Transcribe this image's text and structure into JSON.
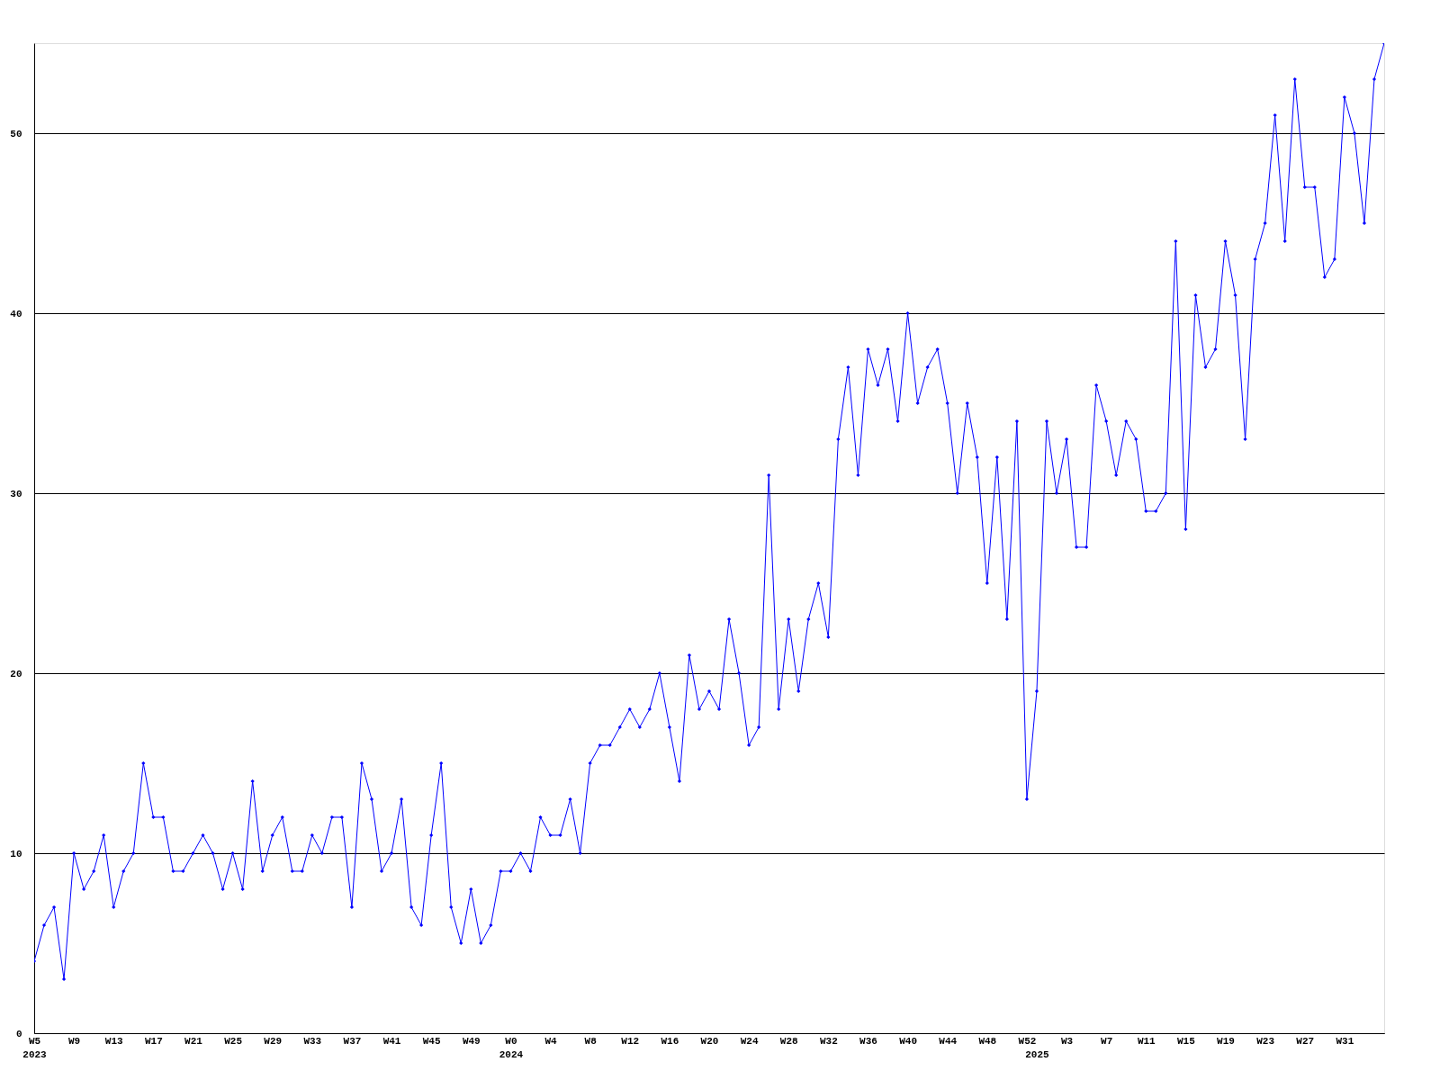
{
  "chart_data": {
    "type": "line",
    "categories": [
      "W5\n2023",
      null,
      null,
      null,
      "W9",
      null,
      null,
      null,
      "W13",
      null,
      null,
      null,
      "W17",
      null,
      null,
      null,
      "W21",
      null,
      null,
      null,
      "W25",
      null,
      null,
      null,
      "W29",
      null,
      null,
      null,
      "W33",
      null,
      null,
      null,
      "W37",
      null,
      null,
      null,
      "W41",
      null,
      null,
      null,
      "W45",
      null,
      null,
      null,
      "W49",
      null,
      null,
      null,
      "W0\n2024",
      null,
      null,
      null,
      "W4",
      null,
      null,
      null,
      "W8",
      null,
      null,
      null,
      "W12",
      null,
      null,
      null,
      "W16",
      null,
      null,
      null,
      "W20",
      null,
      null,
      null,
      "W24",
      null,
      null,
      null,
      "W28",
      null,
      null,
      null,
      "W32",
      null,
      null,
      null,
      "W36",
      null,
      null,
      null,
      "W40",
      null,
      null,
      null,
      "W44",
      null,
      null,
      null,
      "W48",
      null,
      null,
      null,
      "W52",
      "\n2025",
      null,
      null,
      "W3",
      null,
      null,
      null,
      "W7",
      null,
      null,
      null,
      "W11",
      null,
      null,
      null,
      "W15",
      null,
      null,
      null,
      "W19",
      null,
      null,
      null,
      "W23",
      null,
      null,
      null,
      "W27",
      null,
      null,
      null,
      "W31",
      null,
      null,
      null,
      null
    ],
    "series": [
      {
        "color": "#0000ff",
        "values": [
          4,
          6,
          7,
          3,
          10,
          8,
          9,
          11,
          7,
          9,
          10,
          15,
          12,
          12,
          9,
          9,
          10,
          11,
          10,
          8,
          10,
          8,
          14,
          9,
          11,
          12,
          9,
          9,
          11,
          10,
          12,
          12,
          7,
          15,
          13,
          9,
          10,
          13,
          7,
          6,
          11,
          15,
          7,
          5,
          8,
          5,
          6,
          9,
          9,
          10,
          9,
          12,
          11,
          11,
          13,
          10,
          15,
          16,
          16,
          17,
          18,
          17,
          18,
          20,
          17,
          14,
          21,
          18,
          19,
          18,
          23,
          20,
          16,
          17,
          31,
          18,
          23,
          19,
          23,
          25,
          22,
          33,
          37,
          31,
          38,
          36,
          38,
          34,
          40,
          35,
          37,
          38,
          35,
          30,
          35,
          32,
          25,
          32,
          23,
          34,
          13,
          19,
          34,
          30,
          33,
          27,
          27,
          36,
          34,
          31,
          34,
          33,
          29,
          29,
          30,
          44,
          28,
          41,
          37,
          38,
          44,
          41,
          33,
          43,
          45,
          51,
          44,
          53,
          47,
          47,
          42,
          43,
          52,
          50,
          45,
          53,
          55
        ]
      }
    ],
    "ylim": [
      0,
      55
    ],
    "yticks": [
      0,
      10,
      20,
      30,
      40,
      50
    ],
    "grid": "y",
    "marker": "diamond",
    "line_style": "solid"
  }
}
